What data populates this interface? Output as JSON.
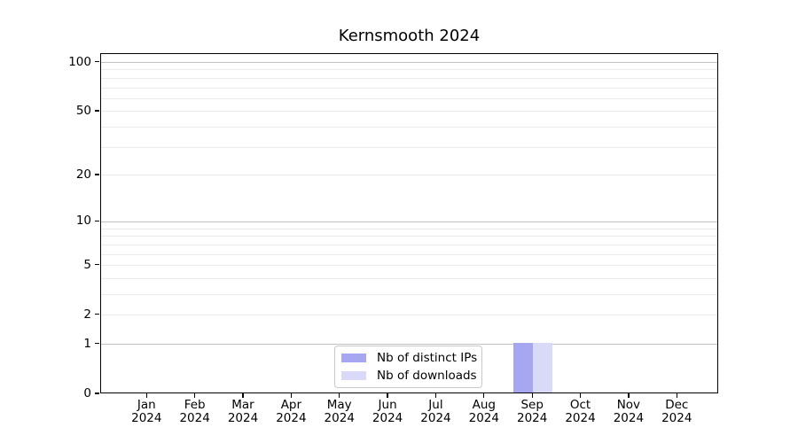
{
  "title": "Kernsmooth 2024",
  "chart_data": {
    "type": "bar",
    "title": "Kernsmooth 2024",
    "categories": [
      "Jan 2024",
      "Feb 2024",
      "Mar 2024",
      "Apr 2024",
      "May 2024",
      "Jun 2024",
      "Jul 2024",
      "Aug 2024",
      "Sep 2024",
      "Oct 2024",
      "Nov 2024",
      "Dec 2024"
    ],
    "series": [
      {
        "name": "Nb of distinct IPs",
        "color": "#a6a6f1",
        "values": [
          0,
          0,
          0,
          0,
          0,
          0,
          0,
          0,
          1,
          0,
          0,
          0
        ]
      },
      {
        "name": "Nb of downloads",
        "color": "#d9d9f8",
        "values": [
          0,
          0,
          0,
          0,
          0,
          0,
          0,
          0,
          1,
          0,
          0,
          0
        ]
      }
    ],
    "yscale": "log1p",
    "ylim": [
      0,
      100
    ],
    "xlabel": "",
    "ylabel": "",
    "ytick_values": [
      0,
      1,
      2,
      5,
      10,
      20,
      50,
      100
    ],
    "gridlines_major": [
      1,
      10,
      100
    ],
    "gridlines_minor": [
      2,
      3,
      4,
      5,
      6,
      7,
      8,
      9,
      20,
      30,
      40,
      50,
      60,
      70,
      80,
      90
    ],
    "grid": true,
    "legend_position": "bottom-center",
    "colors": {
      "grid_major": "#c2c2c2",
      "grid_minor": "#ebebeb",
      "axis": "#000000",
      "background": "#ffffff",
      "legend_border": "#c9c9c9"
    }
  }
}
